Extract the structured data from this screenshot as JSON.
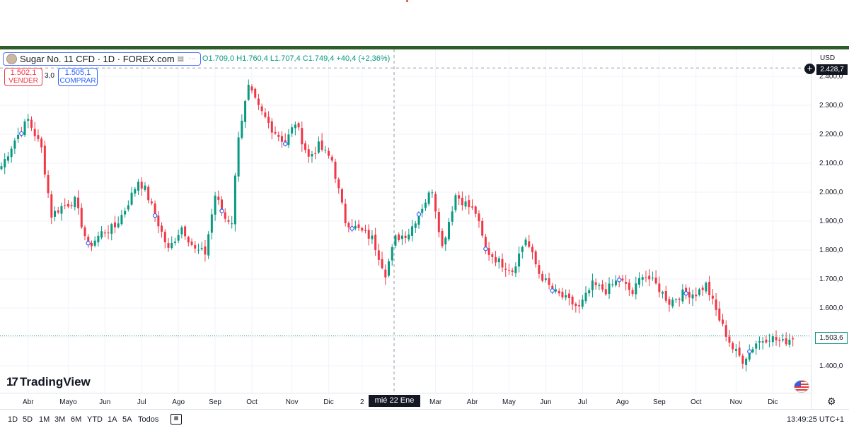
{
  "legend": {
    "symbol": "Sugar No. 11 CFD · 1D · FOREX.com",
    "ohlc_text": "O1.709,0 H1.760,4 L1.707,4 C1.749,4 +40,4 (+2,36%)",
    "icons": [
      "chart-type-icon",
      "more-icon"
    ]
  },
  "trade": {
    "sell_value": "1.502,1",
    "sell_label": "VENDER",
    "spread": "3,0",
    "buy_value": "1.505,1",
    "buy_label": "COMPRAR"
  },
  "price_axis": {
    "currency": "USD",
    "last_price_label": "1.503,6",
    "crosshair_price_label": "2.428,7",
    "ticks": [
      "1.400,0",
      "1.500,0",
      "1.600,0",
      "1.700,0",
      "1.800,0",
      "1.900,0",
      "2.000,0",
      "2.100,0",
      "2.200,0",
      "2.300,0",
      "2.400,0"
    ]
  },
  "crosshair": {
    "date_label": "mié 22 Ene '25",
    "price": 2428.7
  },
  "brand": {
    "logo_mark": "17",
    "name": "TradingView"
  },
  "timeframes": [
    "1D",
    "5D",
    "1M",
    "3M",
    "6M",
    "YTD",
    "1A",
    "5A",
    "Todos"
  ],
  "clock": "13:49:25 UTC+1",
  "colors": {
    "up": "#089981",
    "down": "#f23645",
    "accent": "#2962ff",
    "border_top": "#2e5e2a"
  },
  "chart_data": {
    "type": "candlestick",
    "title": "Sugar No. 11 CFD · 1D · FOREX.com",
    "xlabel": "",
    "ylabel": "USD",
    "ylim": [
      1330,
      2480
    ],
    "x_ticks": [
      {
        "label": "Abr",
        "i": 8
      },
      {
        "label": "Mayo",
        "i": 20
      },
      {
        "label": "Jun",
        "i": 31
      },
      {
        "label": "Jul",
        "i": 42
      },
      {
        "label": "Ago",
        "i": 53
      },
      {
        "label": "Sep",
        "i": 64
      },
      {
        "label": "Oct",
        "i": 75
      },
      {
        "label": "Nov",
        "i": 87
      },
      {
        "label": "Dic",
        "i": 98
      },
      {
        "label": "2",
        "i": 108
      },
      {
        "label": "Mar",
        "i": 130
      },
      {
        "label": "Abr",
        "i": 141
      },
      {
        "label": "May",
        "i": 152
      },
      {
        "label": "Jun",
        "i": 163
      },
      {
        "label": "Jul",
        "i": 174
      },
      {
        "label": "Ago",
        "i": 186
      },
      {
        "label": "Sep",
        "i": 197
      },
      {
        "label": "Oct",
        "i": 208
      },
      {
        "label": "Nov",
        "i": 220
      },
      {
        "label": "Dic",
        "i": 231
      }
    ],
    "keypoints": [
      [
        0,
        2090
      ],
      [
        4,
        2180
      ],
      [
        8,
        2250
      ],
      [
        12,
        2150
      ],
      [
        15,
        1920
      ],
      [
        18,
        1950
      ],
      [
        22,
        1970
      ],
      [
        26,
        1810
      ],
      [
        30,
        1860
      ],
      [
        34,
        1880
      ],
      [
        37,
        1940
      ],
      [
        41,
        2040
      ],
      [
        43,
        2010
      ],
      [
        46,
        1920
      ],
      [
        50,
        1800
      ],
      [
        54,
        1880
      ],
      [
        58,
        1800
      ],
      [
        61,
        1790
      ],
      [
        64,
        1990
      ],
      [
        67,
        1910
      ],
      [
        69,
        1900
      ],
      [
        71,
        2200
      ],
      [
        74,
        2360
      ],
      [
        77,
        2290
      ],
      [
        81,
        2220
      ],
      [
        85,
        2170
      ],
      [
        88,
        2240
      ],
      [
        92,
        2120
      ],
      [
        95,
        2160
      ],
      [
        99,
        2110
      ],
      [
        103,
        1900
      ],
      [
        107,
        1870
      ],
      [
        111,
        1840
      ],
      [
        115,
        1720
      ],
      [
        118,
        1840
      ],
      [
        122,
        1860
      ],
      [
        126,
        1950
      ],
      [
        129,
        2010
      ],
      [
        132,
        1810
      ],
      [
        136,
        1990
      ],
      [
        139,
        1960
      ],
      [
        142,
        1930
      ],
      [
        145,
        1800
      ],
      [
        149,
        1760
      ],
      [
        153,
        1730
      ],
      [
        157,
        1840
      ],
      [
        161,
        1720
      ],
      [
        165,
        1660
      ],
      [
        169,
        1630
      ],
      [
        173,
        1600
      ],
      [
        177,
        1680
      ],
      [
        181,
        1660
      ],
      [
        185,
        1700
      ],
      [
        189,
        1650
      ],
      [
        192,
        1720
      ],
      [
        196,
        1680
      ],
      [
        200,
        1620
      ],
      [
        204,
        1650
      ],
      [
        208,
        1650
      ],
      [
        211,
        1680
      ],
      [
        215,
        1560
      ],
      [
        219,
        1460
      ],
      [
        222,
        1420
      ],
      [
        226,
        1480
      ],
      [
        230,
        1500
      ],
      [
        234,
        1480
      ],
      [
        237,
        1500
      ]
    ],
    "bar_count": 238
  }
}
